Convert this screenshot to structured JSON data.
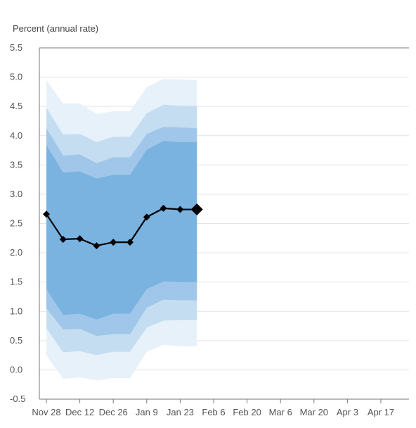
{
  "chart_data": {
    "type": "area",
    "ylabel": "Percent (annual rate)",
    "ylim": [
      -0.5,
      5.5
    ],
    "y_ticks": [
      "5.5",
      "5.0",
      "4.5",
      "4.0",
      "3.5",
      "3.0",
      "2.5",
      "2.0",
      "1.5",
      "1.0",
      "0.5",
      "0.0",
      "-0.5"
    ],
    "x_ticks": [
      "Nov 28",
      "Dec 12",
      "Dec 26",
      "Jan 9",
      "Jan 23",
      "Feb 6",
      "Feb 20",
      "Mar 6",
      "Mar 20",
      "Apr 3",
      "Apr 17"
    ],
    "x_tick_dates": [
      "2022-11-28",
      "2022-12-12",
      "2022-12-26",
      "2023-01-09",
      "2023-01-23",
      "2023-02-06",
      "2023-02-20",
      "2023-03-06",
      "2023-03-20",
      "2023-04-03",
      "2023-04-17"
    ],
    "x": [
      "2022-11-28",
      "2022-12-05",
      "2022-12-12",
      "2022-12-19",
      "2022-12-26",
      "2023-01-02",
      "2023-01-09",
      "2023-01-16",
      "2023-01-23",
      "2023-01-30"
    ],
    "point_estimate": [
      2.66,
      2.23,
      2.24,
      2.12,
      2.18,
      2.18,
      2.61,
      2.76,
      2.74,
      2.74
    ],
    "bands": [
      {
        "upper": [
          4.95,
          4.55,
          4.55,
          4.37,
          4.42,
          4.42,
          4.83,
          4.97,
          4.96,
          4.95
        ],
        "lower": [
          0.25,
          -0.15,
          -0.13,
          -0.18,
          -0.14,
          -0.14,
          0.31,
          0.43,
          0.4,
          0.4
        ],
        "color": "#e7f1fa"
      },
      {
        "upper": [
          4.48,
          4.02,
          4.03,
          3.89,
          3.98,
          3.98,
          4.38,
          4.53,
          4.51,
          4.51
        ],
        "lower": [
          0.71,
          0.3,
          0.32,
          0.25,
          0.31,
          0.31,
          0.72,
          0.84,
          0.85,
          0.85
        ],
        "color": "#c5ddf1"
      },
      {
        "upper": [
          4.13,
          3.66,
          3.68,
          3.53,
          3.63,
          3.63,
          4.03,
          4.15,
          4.14,
          4.13
        ],
        "lower": [
          1.05,
          0.69,
          0.7,
          0.58,
          0.61,
          0.61,
          1.06,
          1.2,
          1.19,
          1.19
        ],
        "color": "#a0c7e9"
      },
      {
        "upper": [
          3.84,
          3.37,
          3.39,
          3.27,
          3.33,
          3.33,
          3.76,
          3.91,
          3.89,
          3.89
        ],
        "lower": [
          1.38,
          0.94,
          0.96,
          0.86,
          0.96,
          0.96,
          1.38,
          1.51,
          1.5,
          1.5
        ],
        "color": "#7ab3e0"
      }
    ],
    "line_color": "#000000",
    "grid": true,
    "legend": "none"
  }
}
